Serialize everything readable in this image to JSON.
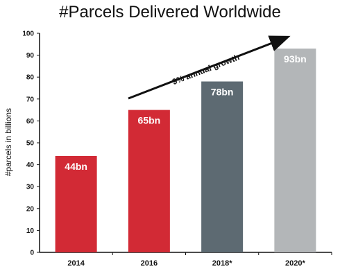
{
  "chart_data": {
    "type": "bar",
    "title": "#Parcels Delivered Worldwide",
    "xlabel": "",
    "ylabel": "#parcels in billions",
    "ylim": [
      0,
      100
    ],
    "yticks": [
      0,
      10,
      20,
      30,
      40,
      50,
      60,
      70,
      80,
      90,
      100
    ],
    "categories": [
      "2014",
      "2016",
      "2018*",
      "2020*"
    ],
    "values": [
      44,
      65,
      78,
      93
    ],
    "data_labels": [
      "44bn",
      "65bn",
      "78bn",
      "93bn"
    ],
    "bar_colors": [
      "#d22a35",
      "#d22a35",
      "#5d6a72",
      "#b3b6b8"
    ],
    "annotation": "9% annual growth",
    "grid": false,
    "legend": "none"
  }
}
